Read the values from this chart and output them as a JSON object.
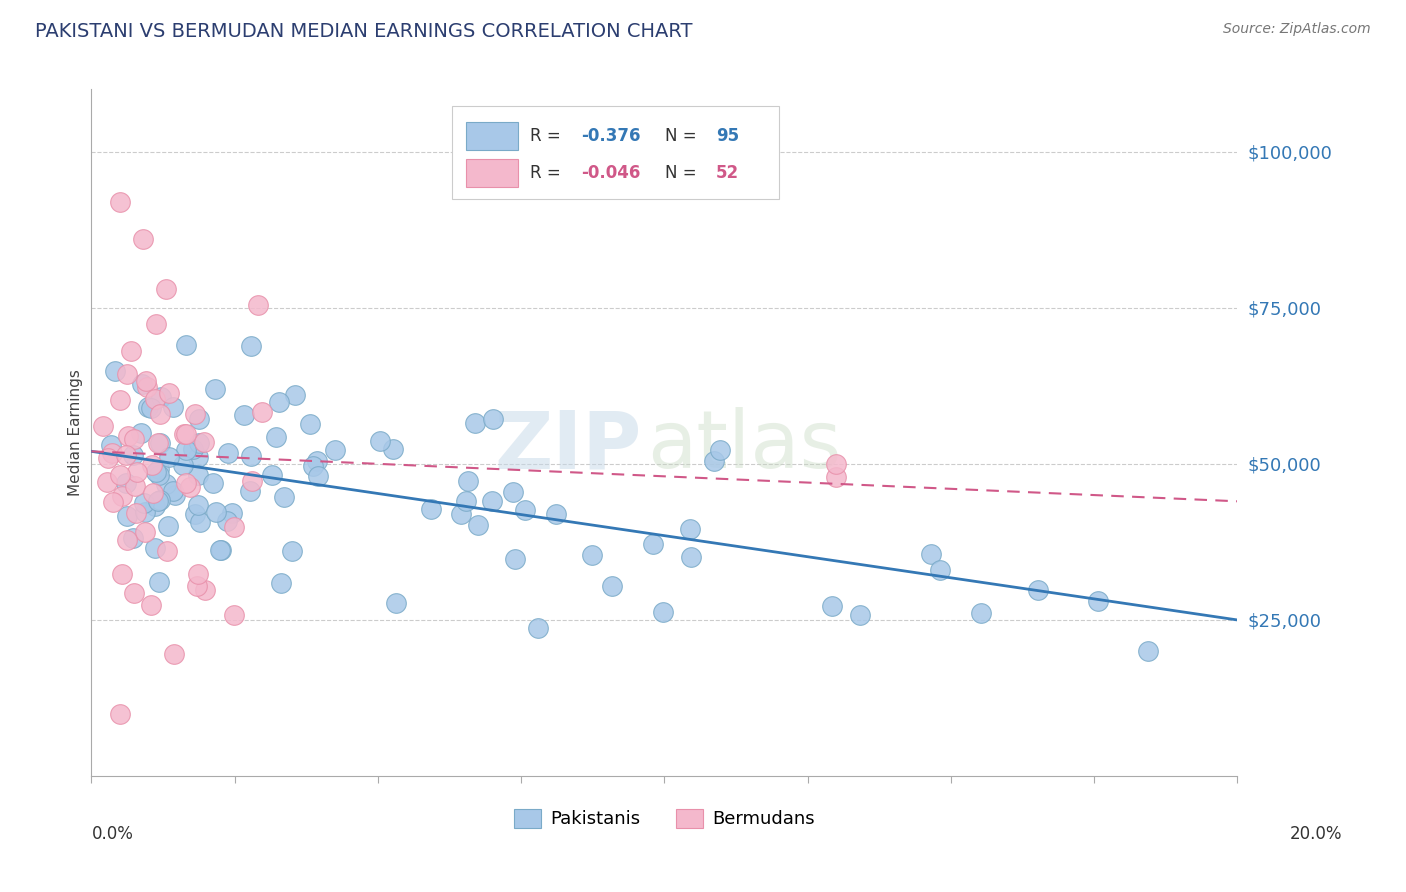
{
  "title": "PAKISTANI VS BERMUDAN MEDIAN EARNINGS CORRELATION CHART",
  "source": "Source: ZipAtlas.com",
  "ylabel": "Median Earnings",
  "blue_color": "#a8c8e8",
  "pink_color": "#f4b8cc",
  "blue_edge_color": "#7aaac8",
  "pink_edge_color": "#e890aa",
  "blue_line_color": "#3478b5",
  "pink_line_color": "#d05888",
  "blue_label_color": "#3478b5",
  "pink_label_color": "#d05888",
  "pakistanis_label": "Pakistanis",
  "bermudans_label": "Bermudans",
  "watermark_zip": "ZIP",
  "watermark_atlas": "atlas",
  "title_color": "#2c3e70",
  "source_color": "#777777",
  "grid_color": "#cccccc",
  "ytick_color": "#3478b5",
  "xlim": [
    0.0,
    0.2
  ],
  "ylim": [
    0,
    110000
  ],
  "yticks": [
    25000,
    50000,
    75000,
    100000
  ],
  "ytick_labels": [
    "$25,000",
    "$50,000",
    "$75,000",
    "$100,000"
  ],
  "pak_trend_x0": 0.0,
  "pak_trend_x1": 0.2,
  "pak_trend_y0": 52000,
  "pak_trend_y1": 25000,
  "ber_trend_x0": 0.0,
  "ber_trend_x1": 0.2,
  "ber_trend_y0": 52000,
  "ber_trend_y1": 44000,
  "legend_r1": "R = ",
  "legend_v1": "-0.376",
  "legend_n1": "N = ",
  "legend_n1v": "95",
  "legend_r2": "R = ",
  "legend_v2": "-0.046",
  "legend_n2": "N = ",
  "legend_n2v": "52"
}
